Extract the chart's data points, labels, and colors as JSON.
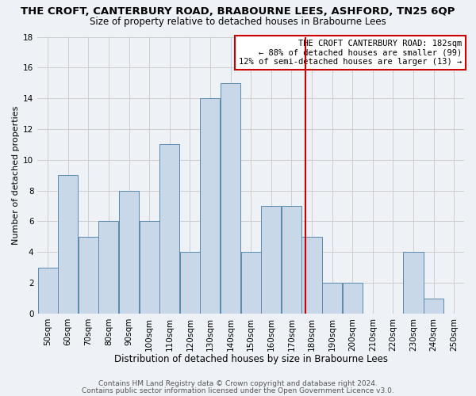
{
  "title": "THE CROFT, CANTERBURY ROAD, BRABOURNE LEES, ASHFORD, TN25 6QP",
  "subtitle": "Size of property relative to detached houses in Brabourne Lees",
  "xlabel": "Distribution of detached houses by size in Brabourne Lees",
  "ylabel": "Number of detached properties",
  "bin_labels": [
    "50sqm",
    "60sqm",
    "70sqm",
    "80sqm",
    "90sqm",
    "100sqm",
    "110sqm",
    "120sqm",
    "130sqm",
    "140sqm",
    "150sqm",
    "160sqm",
    "170sqm",
    "180sqm",
    "190sqm",
    "200sqm",
    "210sqm",
    "220sqm",
    "230sqm",
    "240sqm",
    "250sqm"
  ],
  "bin_edges": [
    50,
    60,
    70,
    80,
    90,
    100,
    110,
    120,
    130,
    140,
    150,
    160,
    170,
    180,
    190,
    200,
    210,
    220,
    230,
    240,
    250
  ],
  "counts": [
    3,
    9,
    5,
    6,
    8,
    6,
    11,
    4,
    14,
    15,
    4,
    7,
    7,
    5,
    2,
    2,
    0,
    0,
    4,
    1,
    0
  ],
  "bar_color": "#c8d8e8",
  "bar_edgecolor": "#5a8ab0",
  "grid_color": "#cccccc",
  "vline_x": 182,
  "vline_color": "#cc0000",
  "annotation_title": "THE CROFT CANTERBURY ROAD: 182sqm",
  "annotation_line1": "← 88% of detached houses are smaller (99)",
  "annotation_line2": "12% of semi-detached houses are larger (13) →",
  "annotation_fontsize": 7.5,
  "ylim": [
    0,
    18
  ],
  "yticks": [
    0,
    2,
    4,
    6,
    8,
    10,
    12,
    14,
    16,
    18
  ],
  "footer1": "Contains HM Land Registry data © Crown copyright and database right 2024.",
  "footer2": "Contains public sector information licensed under the Open Government Licence v3.0.",
  "title_fontsize": 9.5,
  "subtitle_fontsize": 8.5,
  "xlabel_fontsize": 8.5,
  "ylabel_fontsize": 8,
  "tick_fontsize": 7.5,
  "footer_fontsize": 6.5,
  "background_color": "#eef2f7"
}
